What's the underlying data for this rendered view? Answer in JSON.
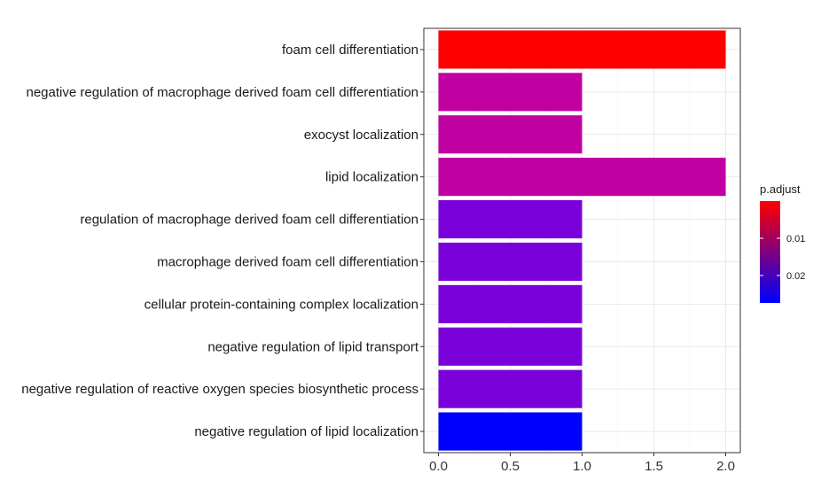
{
  "chart_data": {
    "type": "bar",
    "orientation": "horizontal",
    "categories": [
      "foam cell differentiation",
      "negative regulation of macrophage derived foam cell differentiation",
      "exocyst localization",
      "lipid localization",
      "regulation of macrophage derived foam cell differentiation",
      "macrophage derived foam cell differentiation",
      "cellular protein-containing complex localization",
      "negative regulation of lipid transport",
      "negative regulation of reactive oxygen species biosynthetic process",
      "negative regulation of lipid localization"
    ],
    "values": [
      2,
      1,
      1,
      2,
      1,
      1,
      1,
      1,
      1,
      1
    ],
    "bar_colors": [
      "#FF0000",
      "#C000A0",
      "#C000A0",
      "#C000A0",
      "#7A00DA",
      "#7A00DA",
      "#7A00DA",
      "#7A00DA",
      "#7A00DA",
      "#0000FF"
    ],
    "xlim": [
      0,
      2
    ],
    "x_ticks": [
      "0.0",
      "0.5",
      "1.0",
      "1.5",
      "2.0"
    ],
    "grid": true,
    "title": "",
    "xlabel": "",
    "ylabel": "",
    "legend": {
      "title": "p.adjust",
      "position": "right",
      "type": "gradient",
      "colors": [
        "#FF0000",
        "#0000FF"
      ],
      "labels": [
        "0.01",
        "0.02"
      ]
    }
  }
}
